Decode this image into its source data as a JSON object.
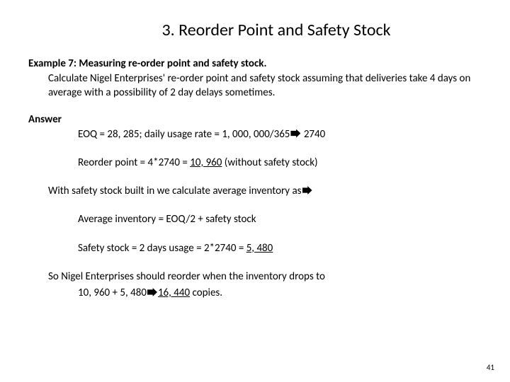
{
  "title": "3. Reorder Point and Safety Stock",
  "example_heading": "Example 7: Measuring re-order point and safety stock.",
  "problem": "Calculate Nigel Enterprises' re-order point and safety stock assuming that deliveries take 4 days on average with a possibility of 2 day delays sometimes.",
  "answer_label": "Answer",
  "eoq_prefix": "EOQ = 28, 285; daily usage rate = 1, 000, 000/365",
  "eoq_suffix": " 2740",
  "reorder_prefix": "Reorder point = 4*2740 = ",
  "reorder_value": "10, 960",
  "reorder_suffix": " (without safety stock)",
  "with_safety_text": "With safety stock built in we calculate average inventory as",
  "avg_inventory": "Average inventory = EOQ/2 + safety stock",
  "safety_prefix": "Safety stock = 2 days usage = 2*2740 = ",
  "safety_value": "5, 480",
  "final_line": "So Nigel Enterprises should reorder when the inventory drops to",
  "final_sub_prefix": "10, 960 + 5, 480",
  "final_sub_value": "16, 440",
  "final_sub_suffix": " copies.",
  "page_number": "41"
}
